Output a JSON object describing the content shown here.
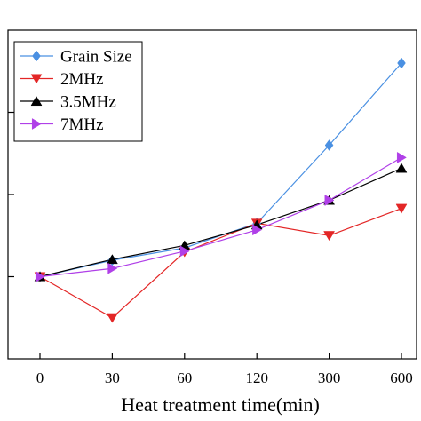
{
  "chart_data": {
    "type": "line",
    "xlabel": "Heat treatment time(min)",
    "ylabel": "",
    "categories": [
      "0",
      "30",
      "60",
      "120",
      "300",
      "600"
    ],
    "ylim": [
      0,
      4
    ],
    "y_ticks": [
      1,
      2,
      3
    ],
    "grid": false,
    "legend_position": "top-left",
    "series": [
      {
        "name": "Grain Size",
        "color": "#4a90e2",
        "marker": "diamond",
        "values": [
          1.0,
          1.2,
          1.35,
          1.65,
          2.6,
          3.6
        ]
      },
      {
        "name": "2MHz",
        "color": "#e32626",
        "marker": "triangle-down",
        "values": [
          1.0,
          0.5,
          1.3,
          1.65,
          1.5,
          1.83
        ]
      },
      {
        "name": "3.5MHz",
        "color": "#000000",
        "marker": "triangle-up",
        "values": [
          1.0,
          1.21,
          1.38,
          1.63,
          1.93,
          2.32
        ]
      },
      {
        "name": "7MHz",
        "color": "#b040e8",
        "marker": "triangle-right",
        "values": [
          1.0,
          1.1,
          1.31,
          1.57,
          1.93,
          2.45
        ]
      }
    ]
  }
}
